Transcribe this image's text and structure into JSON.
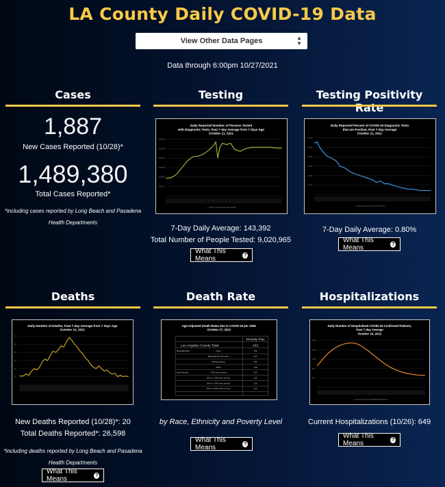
{
  "header": {
    "title": "LA County Daily COVID-19 Data",
    "dropdown_label": "View Other Data Pages",
    "data_through": "Data through 6:00pm 10/27/2021"
  },
  "what_this_means": "What This Means",
  "cases": {
    "heading": "Cases",
    "new_cases": "1,887",
    "new_cases_label": "New Cases Reported (10/28)*",
    "total_cases": "1,489,380",
    "total_cases_label": "Total Cases Reported*",
    "note": "*including cases reported by Long Beach and Pasadena Health Departments"
  },
  "testing": {
    "heading": "Testing",
    "chart_title": "Daily Reported Number of Persons Tested with Diagnostic Tests, Past 7-day Average from 7 days Ago October 21, 2021",
    "avg": "7-Day Daily Average: 143,392",
    "total": "Total Number of People Tested: 9,020,965"
  },
  "positivity": {
    "heading": "Testing Positivity Rate",
    "chart_title": "Daily Reported Percent of COVID-19 Diagnostic Tests that are Positive, Past 7-day Average October 21, 2021",
    "avg": "7-Day Daily Average: 0.80%"
  },
  "deaths": {
    "heading": "Deaths",
    "chart_title": "Daily Number of Deaths, Past 7-day Average from 7 days Ago October 21, 2021",
    "new": "New Deaths Reported (10/28)*: 20",
    "total": "Total Deaths Reported*: 26,598",
    "note": "*including deaths reported by Long Beach and Pasadena Health Departments"
  },
  "death_rate": {
    "heading": "Death Rate",
    "chart_title": "Age-Adjusted Death Rates due to COVID-19 per 100K October 27, 2021",
    "caption": "by Race, Ethnicity and Poverty Level",
    "table": {
      "col_header": "Mortality Rate",
      "county_label": "Los Angeles County Total",
      "county_value": "242",
      "group1": "Race/Ethnicity",
      "group2": "Area Poverty",
      "rows": [
        {
          "label": "Asian",
          "value": "169"
        },
        {
          "label": "Black/African American",
          "value": "244"
        },
        {
          "label": "Hispanic/Latino",
          "value": "380"
        },
        {
          "label": "White",
          "value": "138"
        },
        {
          "label": "<10% area poverty",
          "value": "139"
        },
        {
          "label": "10% to <20% area poverty",
          "value": "250"
        },
        {
          "label": "20% to <30% area poverty",
          "value": "329"
        },
        {
          "label": "30% to 100% area poverty",
          "value": "443"
        }
      ]
    }
  },
  "hospitalizations": {
    "heading": "Hospitalizations",
    "chart_title": "Daily Number of Hospitalized COVID-19 Confirmed Patients, Past 7-day Average October 24, 2021",
    "current": "Current Hospitalizations (10/26): 649"
  },
  "colors": {
    "accent_gold": "#f7c948",
    "testing_line": "#9bb23a",
    "positivity_line": "#3b8ed6",
    "deaths_line": "#c9a227",
    "hosp_line": "#d9822b"
  }
}
